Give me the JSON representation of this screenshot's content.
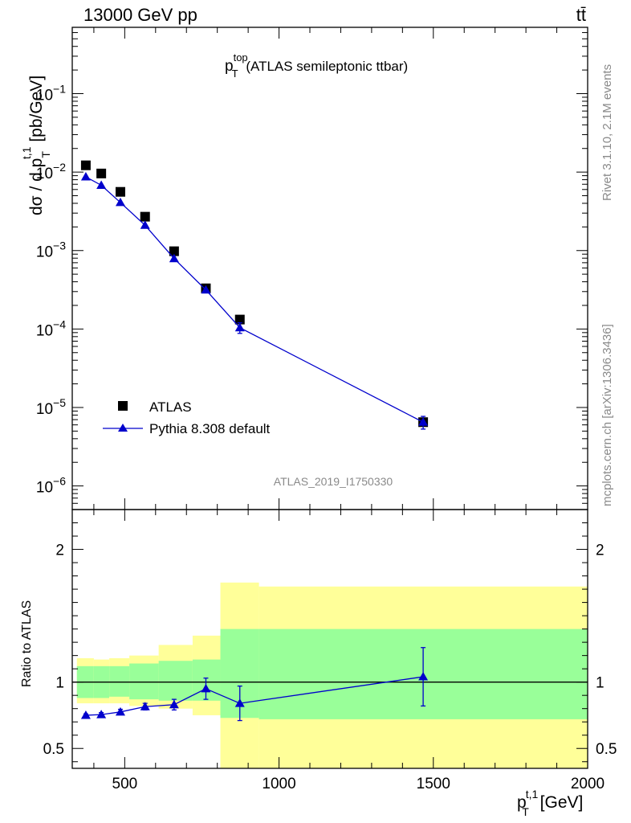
{
  "header": {
    "left": "13000 GeV pp",
    "right": "tt̄"
  },
  "side_text": {
    "rivet": "Rivet 3.1.10,  2.1M events",
    "mcplots": "mcplots.cern.ch [arXiv:1306.3436]"
  },
  "colors": {
    "data": "#000000",
    "mc": "#0000cc",
    "band_inner": "#99ff99",
    "band_outer": "#ffff99",
    "frame": "#000000",
    "label_grey": "#8a8a8a"
  },
  "chart_data": [
    {
      "type": "scatter",
      "panel": "main",
      "title": {
        "main": "p",
        "sup": "top",
        "sub": "T",
        "rest": " (ATLAS semileptonic ttbar)"
      },
      "ylabel": {
        "a": "dσ / d p",
        "sup": "t,1",
        "sub": "T",
        "b": " [pb/GeV]"
      },
      "yscale": "log",
      "xlim": [
        330,
        2000
      ],
      "ylim": [
        5e-07,
        0.7
      ],
      "yticks": [
        {
          "v": 1e-06,
          "base": "10",
          "exp": "−6"
        },
        {
          "v": 1e-05,
          "base": "10",
          "exp": "−5"
        },
        {
          "v": 0.0001,
          "base": "10",
          "exp": "−4"
        },
        {
          "v": 0.001,
          "base": "10",
          "exp": "−3"
        },
        {
          "v": 0.01,
          "base": "10",
          "exp": "−2"
        },
        {
          "v": 0.1,
          "base": "10",
          "exp": "−1"
        }
      ],
      "analysis_label": "ATLAS_2019_I1750330",
      "legend": [
        {
          "label": "ATLAS",
          "marker": "square"
        },
        {
          "label": "Pythia 8.308 default",
          "marker": "triangle"
        }
      ],
      "legend_position": "bottom-left",
      "series": [
        {
          "name": "ATLAS",
          "x": [
            374,
            424,
            486,
            566,
            660,
            763,
            873,
            1467
          ],
          "y": [
            0.0122,
            0.0096,
            0.0056,
            0.0027,
            0.00098,
            0.00033,
            0.000132,
            6.5e-06
          ]
        },
        {
          "name": "Pythia 8.308 default",
          "x": [
            374,
            424,
            486,
            566,
            660,
            763,
            873,
            1467
          ],
          "y": [
            0.0087,
            0.0068,
            0.0041,
            0.0021,
            0.00079,
            0.000315,
            0.000104,
            6.5e-06
          ],
          "yerr": [
            0,
            0,
            0,
            0,
            0,
            0,
            1.6e-05,
            1.2e-06
          ]
        }
      ]
    },
    {
      "type": "line",
      "panel": "ratio",
      "ylabel": "Ratio to ATLAS",
      "xlabel": {
        "main": "p",
        "sup": "t,1",
        "sub": "T",
        "rest": " [GeV]"
      },
      "xlim": [
        330,
        2000
      ],
      "ylim": [
        0.35,
        2.3
      ],
      "xticks": [
        500,
        1000,
        1500,
        2000
      ],
      "yticks": [
        0.5,
        1,
        2
      ],
      "ytick_labels": [
        "0.5",
        "1",
        "2"
      ],
      "reference": 1,
      "bands": [
        {
          "x0": 345,
          "x1": 400,
          "inner": [
            0.88,
            1.12
          ],
          "outer": [
            0.84,
            1.18
          ]
        },
        {
          "x0": 400,
          "x1": 450,
          "inner": [
            0.88,
            1.12
          ],
          "outer": [
            0.84,
            1.17
          ]
        },
        {
          "x0": 450,
          "x1": 515,
          "inner": [
            0.89,
            1.12
          ],
          "outer": [
            0.84,
            1.18
          ]
        },
        {
          "x0": 515,
          "x1": 610,
          "inner": [
            0.87,
            1.14
          ],
          "outer": [
            0.82,
            1.2
          ]
        },
        {
          "x0": 610,
          "x1": 720,
          "inner": [
            0.86,
            1.16
          ],
          "outer": [
            0.8,
            1.28
          ]
        },
        {
          "x0": 720,
          "x1": 810,
          "inner": [
            0.86,
            1.17
          ],
          "outer": [
            0.75,
            1.35
          ]
        },
        {
          "x0": 810,
          "x1": 935,
          "inner": [
            0.73,
            1.4
          ],
          "outer": [
            0.25,
            1.75
          ]
        },
        {
          "x0": 935,
          "x1": 2000,
          "inner": [
            0.72,
            1.4
          ],
          "outer": [
            0.25,
            1.72
          ]
        }
      ],
      "series": [
        {
          "name": "Pythia 8.308 default",
          "x": [
            374,
            424,
            486,
            566,
            660,
            763,
            873,
            1467
          ],
          "y": [
            0.75,
            0.755,
            0.775,
            0.815,
            0.83,
            0.95,
            0.84,
            1.04
          ],
          "yerr": [
            0.01,
            0.015,
            0.02,
            0.025,
            0.04,
            0.08,
            0.13,
            0.22
          ]
        }
      ]
    }
  ]
}
